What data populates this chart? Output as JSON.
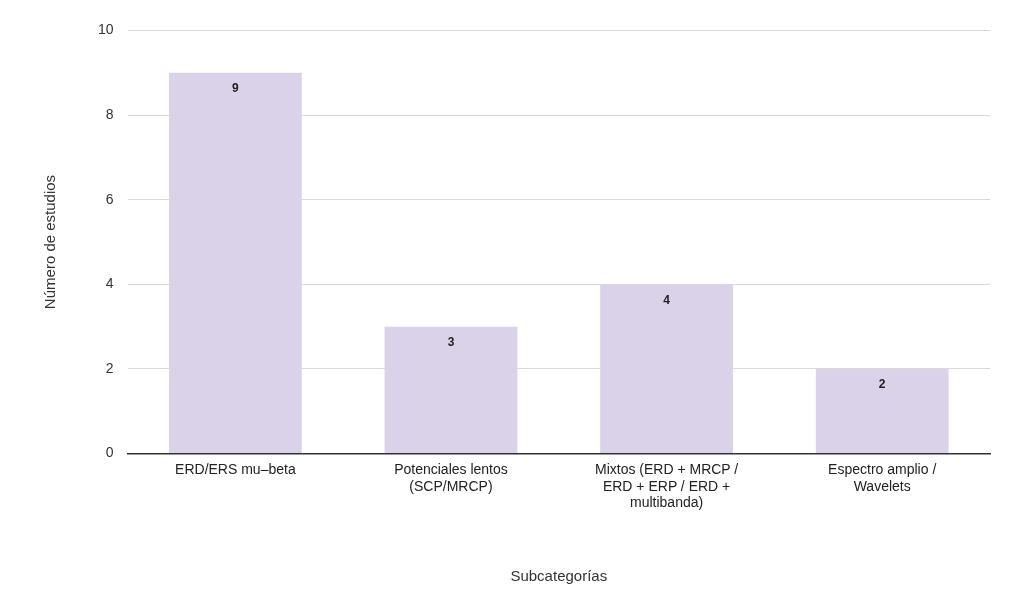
{
  "chart_data": {
    "type": "bar",
    "xlabel": "Subcategorías",
    "ylabel": "Número de estudios",
    "categories": [
      "ERD/ERS mu–beta",
      "Potenciales lentos (SCP/MRCP)",
      "Mixtos (ERD + MRCP / ERD + ERP / ERD + multibanda)",
      "Espectro amplio / Wavelets"
    ],
    "values": [
      9,
      3,
      4,
      2
    ],
    "color": "#d9d2e9",
    "ylim": [
      0,
      10
    ],
    "yticks": [
      0,
      2,
      4,
      6,
      8,
      10
    ],
    "grid": "y",
    "legend": false,
    "data_labels": true
  }
}
